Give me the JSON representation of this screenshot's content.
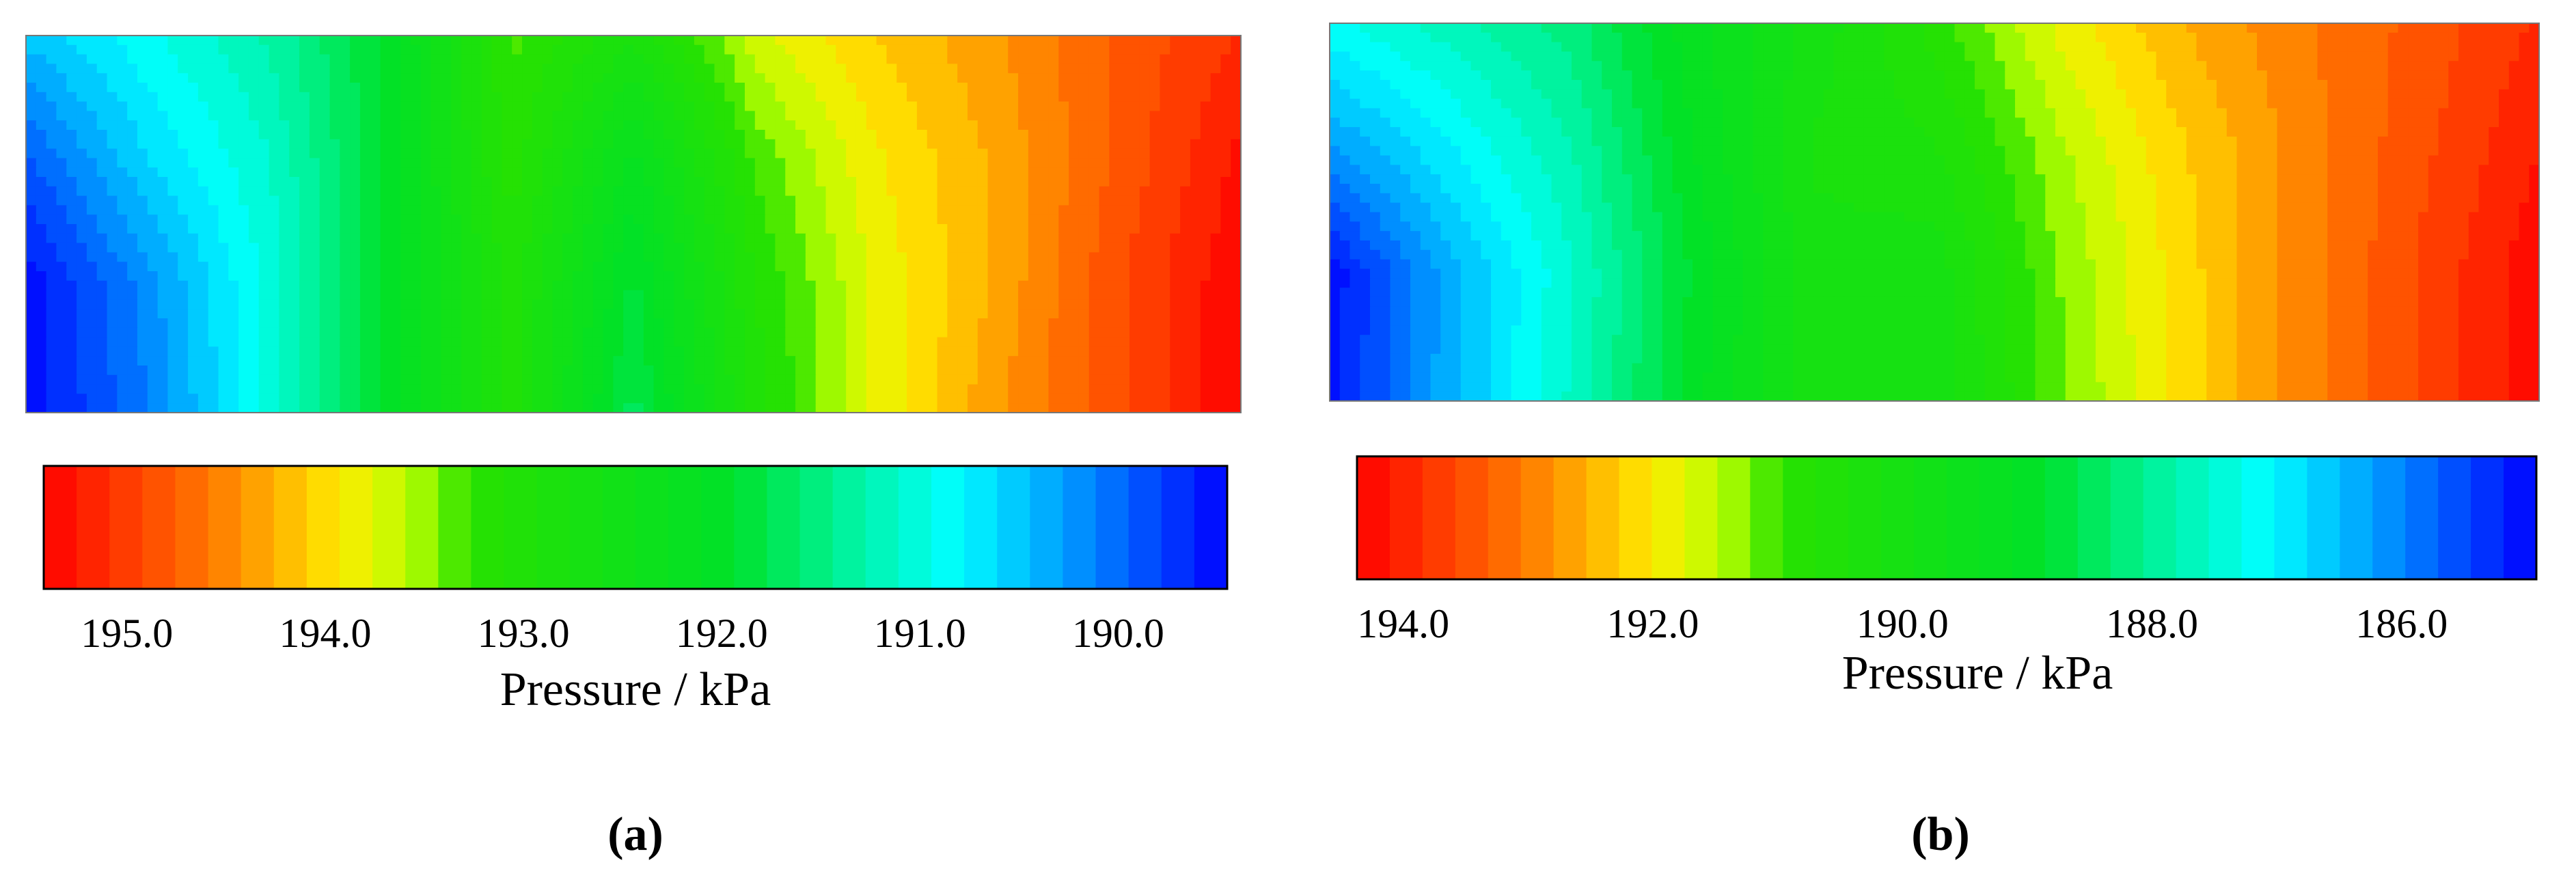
{
  "chart_data": [
    {
      "type": "heatmap",
      "panel_label": "(a)",
      "colorbar": {
        "label": "Pressure / kPa",
        "min": 189.45,
        "max": 195.42,
        "reversed": true,
        "ticks": [
          {
            "value": 195.0,
            "label": "195.0"
          },
          {
            "value": 194.0,
            "label": "194.0"
          },
          {
            "value": 193.0,
            "label": "193.0"
          },
          {
            "value": 192.0,
            "label": "192.0"
          },
          {
            "value": 191.0,
            "label": "191.0"
          },
          {
            "value": 190.0,
            "label": "190.0"
          }
        ]
      },
      "field": {
        "x": [
          0,
          0.1,
          0.2,
          0.3,
          0.4,
          0.5,
          0.6,
          0.7,
          0.8,
          0.9,
          1.0
        ],
        "y": [
          0,
          0.33,
          0.66,
          1.0
        ],
        "values": [
          [
            190.5,
            190.9,
            191.3,
            192.0,
            193.3,
            192.8,
            193.7,
            194.1,
            194.4,
            194.8,
            195.1
          ],
          [
            189.9,
            190.6,
            191.1,
            192.0,
            193.2,
            192.2,
            193.3,
            193.9,
            194.3,
            194.8,
            195.3
          ],
          [
            189.5,
            190.2,
            191.0,
            192.0,
            193.0,
            191.9,
            193.1,
            193.8,
            194.3,
            194.9,
            195.4
          ],
          [
            189.5,
            190.1,
            191.0,
            192.0,
            193.0,
            191.7,
            193.0,
            193.8,
            194.4,
            194.9,
            195.4
          ]
        ]
      }
    },
    {
      "type": "heatmap",
      "panel_label": "(b)",
      "colorbar": {
        "label": "Pressure / kPa",
        "min": 184.92,
        "max": 194.37,
        "reversed": true,
        "ticks": [
          {
            "value": 194.0,
            "label": "194.0"
          },
          {
            "value": 192.0,
            "label": "192.0"
          },
          {
            "value": 190.0,
            "label": "190.0"
          },
          {
            "value": 188.0,
            "label": "188.0"
          },
          {
            "value": 186.0,
            "label": "186.0"
          }
        ]
      },
      "field": {
        "x": [
          0,
          0.1,
          0.2,
          0.3,
          0.4,
          0.5,
          0.6,
          0.7,
          0.8,
          0.9,
          1.0
        ],
        "y": [
          0,
          0.33,
          0.66,
          1.0
        ],
        "values": [
          [
            187.2,
            187.7,
            188.2,
            189.3,
            190.0,
            190.8,
            191.8,
            192.5,
            193.0,
            193.4,
            193.9
          ],
          [
            186.2,
            187.0,
            187.8,
            189.1,
            190.2,
            190.4,
            191.4,
            192.2,
            192.9,
            193.5,
            194.1
          ],
          [
            185.0,
            186.4,
            187.5,
            188.9,
            190.1,
            190.0,
            191.2,
            192.1,
            192.9,
            193.6,
            194.3
          ],
          [
            185.1,
            186.4,
            187.6,
            189.0,
            190.1,
            190.0,
            191.1,
            192.1,
            192.9,
            193.6,
            194.3
          ]
        ]
      }
    }
  ]
}
